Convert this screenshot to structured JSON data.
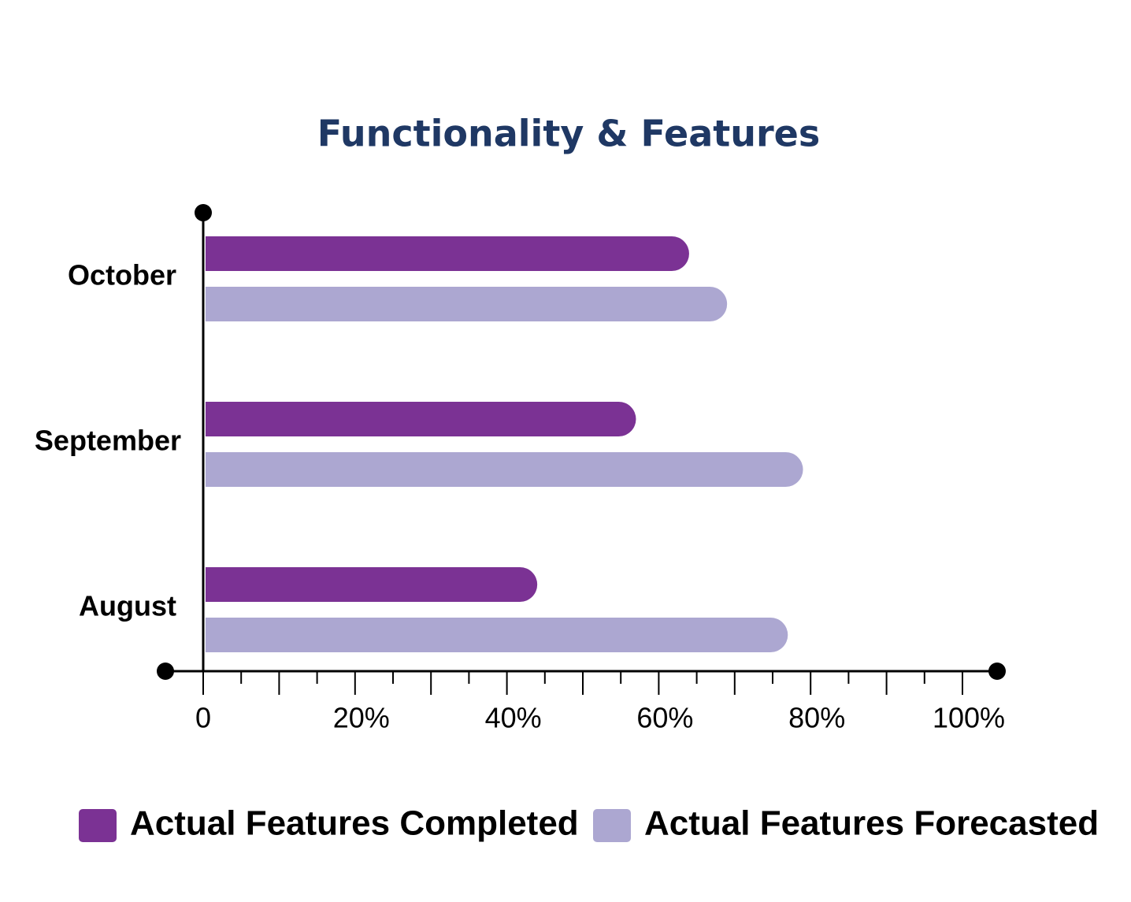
{
  "chart_data": {
    "type": "bar",
    "orientation": "horizontal",
    "title": "Functionality & Features",
    "categories": [
      "October",
      "September",
      "August"
    ],
    "series": [
      {
        "name": "Actual Features Completed",
        "color": "#7b3294",
        "values": [
          64,
          57,
          44
        ]
      },
      {
        "name": "Actual Features Forecasted",
        "color": "#aca7d1",
        "values": [
          69,
          79,
          77
        ]
      }
    ],
    "xlim": [
      0,
      100
    ],
    "xticks": [
      0,
      {
        "value": 20,
        "label": "20%"
      },
      {
        "value": 40,
        "label": "40%"
      },
      {
        "value": 60,
        "label": "60%"
      },
      {
        "value": 80,
        "label": "80%"
      },
      {
        "value": 100,
        "label": "100%"
      }
    ],
    "xminorticks": [
      5,
      10,
      15,
      25,
      30,
      35,
      45,
      50,
      55,
      65,
      70,
      75,
      85,
      90,
      95
    ],
    "legend": "bottom"
  }
}
